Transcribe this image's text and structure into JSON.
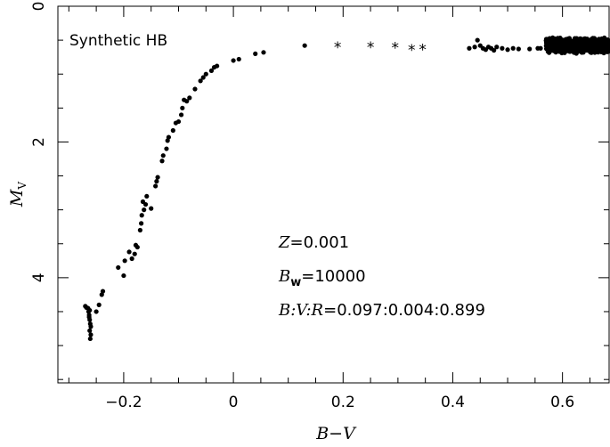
{
  "chart_data": {
    "type": "scatter",
    "title": "Synthetic HB",
    "xlabel": "B−V",
    "ylabel": "MV",
    "ylabel_main": "M",
    "ylabel_sub": "V",
    "xlim": [
      -0.32,
      0.685
    ],
    "ylim": [
      0,
      5.55
    ],
    "y_inverted": true,
    "xticks": [
      -0.2,
      0,
      0.2,
      0.4,
      0.6
    ],
    "xtick_labels": [
      "−0.2",
      "0",
      "0.2",
      "0.4",
      "0.6"
    ],
    "xminor_step": 0.05,
    "yticks": [
      0,
      2,
      4
    ],
    "ytick_labels": [
      "0",
      "2",
      "4"
    ],
    "yminor_step": 0.5,
    "annotations": {
      "z": {
        "var": "Z",
        "value": "=0.001"
      },
      "bw": {
        "var": "B",
        "sub": "w",
        "value": "=10000"
      },
      "ratio": {
        "var": "B:V:R",
        "value": "=0.097:0.004:0.899"
      }
    },
    "series": [
      {
        "marker": "dot",
        "points": [
          [
            -0.27,
            4.42
          ],
          [
            -0.268,
            4.44
          ],
          [
            -0.265,
            4.45
          ],
          [
            -0.262,
            4.48
          ],
          [
            -0.263,
            4.55
          ],
          [
            -0.262,
            4.62
          ],
          [
            -0.261,
            4.68
          ],
          [
            -0.26,
            4.72
          ],
          [
            -0.262,
            4.78
          ],
          [
            -0.26,
            4.84
          ],
          [
            -0.261,
            4.9
          ],
          [
            -0.264,
            4.5
          ],
          [
            -0.263,
            4.58
          ],
          [
            -0.25,
            4.5
          ],
          [
            -0.245,
            4.4
          ],
          [
            -0.24,
            4.25
          ],
          [
            -0.238,
            4.2
          ],
          [
            -0.21,
            3.85
          ],
          [
            -0.2,
            3.97
          ],
          [
            -0.198,
            3.75
          ],
          [
            -0.19,
            3.62
          ],
          [
            -0.185,
            3.72
          ],
          [
            -0.18,
            3.65
          ],
          [
            -0.178,
            3.52
          ],
          [
            -0.175,
            3.55
          ],
          [
            -0.17,
            3.3
          ],
          [
            -0.168,
            3.2
          ],
          [
            -0.167,
            3.08
          ],
          [
            -0.165,
            2.88
          ],
          [
            -0.163,
            3.0
          ],
          [
            -0.16,
            2.92
          ],
          [
            -0.158,
            2.8
          ],
          [
            -0.15,
            2.98
          ],
          [
            -0.142,
            2.65
          ],
          [
            -0.14,
            2.58
          ],
          [
            -0.138,
            2.52
          ],
          [
            -0.13,
            2.28
          ],
          [
            -0.128,
            2.2
          ],
          [
            -0.122,
            2.1
          ],
          [
            -0.12,
            1.98
          ],
          [
            -0.118,
            1.93
          ],
          [
            -0.11,
            1.83
          ],
          [
            -0.105,
            1.72
          ],
          [
            -0.1,
            1.7
          ],
          [
            -0.095,
            1.6
          ],
          [
            -0.093,
            1.5
          ],
          [
            -0.09,
            1.38
          ],
          [
            -0.085,
            1.4
          ],
          [
            -0.08,
            1.35
          ],
          [
            -0.07,
            1.22
          ],
          [
            -0.06,
            1.1
          ],
          [
            -0.055,
            1.05
          ],
          [
            -0.05,
            1.0
          ],
          [
            -0.04,
            0.95
          ],
          [
            -0.035,
            0.9
          ],
          [
            -0.03,
            0.88
          ],
          [
            0.0,
            0.8
          ],
          [
            0.01,
            0.78
          ],
          [
            0.04,
            0.7
          ],
          [
            0.055,
            0.68
          ],
          [
            0.13,
            0.58
          ],
          [
            0.43,
            0.62
          ],
          [
            0.44,
            0.6
          ],
          [
            0.445,
            0.5
          ],
          [
            0.45,
            0.58
          ],
          [
            0.455,
            0.62
          ],
          [
            0.46,
            0.64
          ],
          [
            0.465,
            0.6
          ],
          [
            0.47,
            0.62
          ],
          [
            0.475,
            0.65
          ],
          [
            0.48,
            0.6
          ],
          [
            0.49,
            0.62
          ],
          [
            0.5,
            0.64
          ],
          [
            0.51,
            0.62
          ],
          [
            0.52,
            0.63
          ],
          [
            0.54,
            0.63
          ],
          [
            0.555,
            0.62
          ],
          [
            0.56,
            0.62
          ]
        ]
      },
      {
        "marker": "asterisk",
        "points": [
          [
            0.19,
            0.59
          ],
          [
            0.25,
            0.59
          ],
          [
            0.295,
            0.6
          ],
          [
            0.325,
            0.63
          ],
          [
            0.345,
            0.62
          ]
        ]
      },
      {
        "marker": "dot",
        "dense": true,
        "x_range": [
          0.57,
          0.685
        ],
        "y_range": [
          0.46,
          0.7
        ],
        "count": 640
      }
    ]
  }
}
